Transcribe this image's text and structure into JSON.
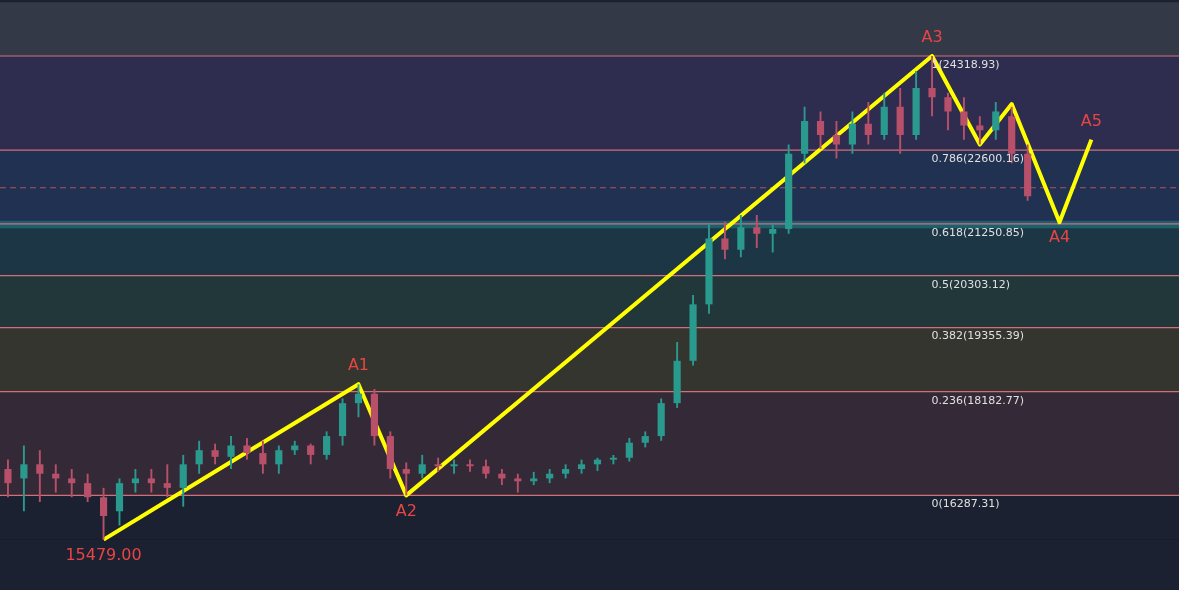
{
  "chart_data": {
    "type": "candlestick",
    "categories": [
      null,
      null,
      null,
      null,
      null,
      null,
      null,
      null,
      null,
      null,
      null,
      null,
      null,
      null,
      null,
      null,
      null,
      null,
      null,
      null,
      null,
      null,
      null,
      null,
      null,
      null,
      null,
      null,
      null,
      null,
      null,
      null,
      null,
      null,
      null,
      null,
      null,
      null,
      null,
      null,
      null,
      null,
      null,
      null,
      null,
      null,
      null,
      null,
      null,
      null,
      null,
      null,
      null,
      null,
      null,
      null,
      null,
      null,
      null,
      null,
      null,
      null,
      null,
      null,
      null,
      null,
      null,
      null,
      null,
      null,
      null,
      null,
      null,
      null
    ],
    "ohlc": [
      [
        16769,
        16941,
        16253,
        16511
      ],
      [
        16597,
        17199,
        15995,
        16855
      ],
      [
        16855,
        17113,
        16167,
        16683
      ],
      [
        16683,
        16855,
        16339,
        16597
      ],
      [
        16597,
        16769,
        16253,
        16511
      ],
      [
        16511,
        16683,
        16167,
        16253
      ],
      [
        16253,
        16425,
        15479,
        15909
      ],
      [
        15995,
        16597,
        15737,
        16511
      ],
      [
        16511,
        16769,
        16339,
        16597
      ],
      [
        16597,
        16769,
        16339,
        16511
      ],
      [
        16511,
        16855,
        16253,
        16425
      ],
      [
        16425,
        17027,
        16081,
        16855
      ],
      [
        16855,
        17285,
        16683,
        17113
      ],
      [
        17113,
        17233,
        16855,
        16992
      ],
      [
        16992,
        17371,
        16769,
        17199
      ],
      [
        17199,
        17336,
        16941,
        17061
      ],
      [
        17061,
        17285,
        16683,
        16855
      ],
      [
        16855,
        17199,
        16683,
        17113
      ],
      [
        17113,
        17285,
        17027,
        17199
      ],
      [
        17199,
        17233,
        16855,
        17027
      ],
      [
        17027,
        17457,
        16941,
        17371
      ],
      [
        17371,
        18059,
        17199,
        17973
      ],
      [
        17973,
        18317,
        17715,
        18145
      ],
      [
        18145,
        18231,
        17199,
        17371
      ],
      [
        17371,
        17457,
        16597,
        16769
      ],
      [
        16769,
        16889,
        16287.31,
        16683
      ],
      [
        16683,
        17027,
        16597,
        16855
      ],
      [
        16855,
        16975,
        16717,
        16820
      ],
      [
        16820,
        16941,
        16683,
        16855
      ],
      [
        16855,
        16941,
        16717,
        16820
      ],
      [
        16820,
        16941,
        16597,
        16683
      ],
      [
        16683,
        16769,
        16476,
        16597
      ],
      [
        16597,
        16683,
        16339,
        16545
      ],
      [
        16545,
        16717,
        16476,
        16597
      ],
      [
        16597,
        16769,
        16511,
        16683
      ],
      [
        16683,
        16855,
        16597,
        16769
      ],
      [
        16769,
        16941,
        16683,
        16855
      ],
      [
        16855,
        16975,
        16734,
        16941
      ],
      [
        16941,
        17027,
        16855,
        16975
      ],
      [
        16975,
        17336,
        16906,
        17250
      ],
      [
        17250,
        17457,
        17164,
        17371
      ],
      [
        17371,
        18059,
        17285,
        17973
      ],
      [
        17973,
        19091,
        17887,
        18747
      ],
      [
        18747,
        19951,
        18661,
        19779
      ],
      [
        19779,
        21241,
        19607,
        20983
      ],
      [
        20983,
        21292,
        20604,
        20776
      ],
      [
        20776,
        21413,
        20639,
        21189
      ],
      [
        21189,
        21413,
        20811,
        21069
      ],
      [
        21069,
        21241,
        20725,
        21155
      ],
      [
        21155,
        22703,
        21069,
        22531
      ],
      [
        22531,
        23391,
        22359,
        23133
      ],
      [
        23133,
        23305,
        22617,
        22875
      ],
      [
        22875,
        23133,
        22445,
        22703
      ],
      [
        22703,
        23305,
        22531,
        23081
      ],
      [
        23081,
        23477,
        22703,
        22875
      ],
      [
        22875,
        23649,
        22789,
        23391
      ],
      [
        23391,
        23735,
        22531,
        22875
      ],
      [
        22875,
        24044,
        22789,
        23735
      ],
      [
        23735,
        24318.93,
        23219,
        23563
      ],
      [
        23563,
        23649,
        22961,
        23305
      ],
      [
        23305,
        23563,
        22789,
        23047
      ],
      [
        23047,
        23219,
        22703,
        22961
      ],
      [
        22961,
        23477,
        22789,
        23305
      ],
      [
        23219,
        23391,
        22359,
        22531
      ],
      [
        22531,
        22703,
        21671,
        21757
      ],
      null,
      null,
      null,
      null,
      null,
      null,
      null,
      null,
      null
    ],
    "series": [
      {
        "type": "line",
        "color": "#ffff00",
        "values": [
          null,
          null,
          null,
          null,
          null,
          null,
          15479,
          null,
          null,
          null,
          null,
          null,
          null,
          null,
          null,
          null,
          null,
          null,
          null,
          null,
          null,
          null,
          18320,
          null,
          null,
          16287.31,
          null,
          null,
          null,
          null,
          null,
          null,
          null,
          null,
          null,
          null,
          null,
          null,
          null,
          null,
          null,
          null,
          null,
          null,
          null,
          null,
          null,
          null,
          null,
          null,
          null,
          null,
          null,
          null,
          null,
          null,
          null,
          null,
          24318.93,
          null,
          null,
          22700,
          null,
          23440,
          null,
          null,
          21280,
          null,
          22790,
          null,
          null,
          null,
          null,
          null
        ],
        "value_labels": [
          null,
          null,
          null,
          null,
          null,
          null,
          "15479.00",
          null,
          null,
          null,
          null,
          null,
          null,
          null,
          null,
          null,
          null,
          null,
          null,
          null,
          null,
          null,
          "A1",
          null,
          null,
          "A2",
          null,
          null,
          null,
          null,
          null,
          null,
          null,
          null,
          null,
          null,
          null,
          null,
          null,
          null,
          null,
          null,
          null,
          null,
          null,
          null,
          null,
          null,
          null,
          null,
          null,
          null,
          null,
          null,
          null,
          null,
          null,
          null,
          "A3",
          null,
          null,
          null,
          null,
          null,
          null,
          null,
          "A4",
          null,
          "A5",
          null,
          null,
          null,
          null,
          null
        ]
      }
    ],
    "legend": false,
    "ref_lines": [
      {
        "axis": "y",
        "value": 24318.93,
        "label": "1(24318.93)",
        "color": "#d0707a"
      },
      {
        "axis": "y",
        "value": 22600.16,
        "label": "0.786(22600.16)",
        "color": "#d0707a"
      },
      {
        "axis": "y",
        "value": 21250.85,
        "label": "0.618(21250.85)",
        "color": "#d0707a"
      },
      {
        "axis": "y",
        "value": 20303.12,
        "label": "0.5(20303.12)",
        "color": "#d0707a"
      },
      {
        "axis": "y",
        "value": 19355.39,
        "label": "0.382(19355.39)",
        "color": "#d0707a"
      },
      {
        "axis": "y",
        "value": 18182.77,
        "label": "0.236(18182.77)",
        "color": "#d0707a"
      },
      {
        "axis": "y",
        "value": 16287.31,
        "label": "0(16287.31)",
        "color": "#d0707a"
      },
      {
        "axis": "y",
        "value": 21911,
        "color": "#b05060",
        "line_style": "dashed"
      }
    ],
    "bands": [
      {
        "axis": "y",
        "from": 24318.93,
        "to": 25300,
        "color": "#5a606c"
      },
      {
        "axis": "y",
        "from": 22600.16,
        "to": 24318.93,
        "color": "#4a3f80"
      },
      {
        "axis": "y",
        "from": 21250.85,
        "to": 22600.16,
        "color": "#2a4a88"
      },
      {
        "axis": "y",
        "from": 20303.12,
        "to": 21250.85,
        "color": "#21586a"
      },
      {
        "axis": "y",
        "from": 19355.39,
        "to": 20303.12,
        "color": "#2a5a48"
      },
      {
        "axis": "y",
        "from": 18182.77,
        "to": 19355.39,
        "color": "#5a5430"
      },
      {
        "axis": "y",
        "from": 16287.31,
        "to": 18182.77,
        "color": "#5a3840"
      },
      {
        "axis": "y",
        "from": 21172,
        "to": 21309,
        "color": "#1aa3a3"
      }
    ]
  }
}
